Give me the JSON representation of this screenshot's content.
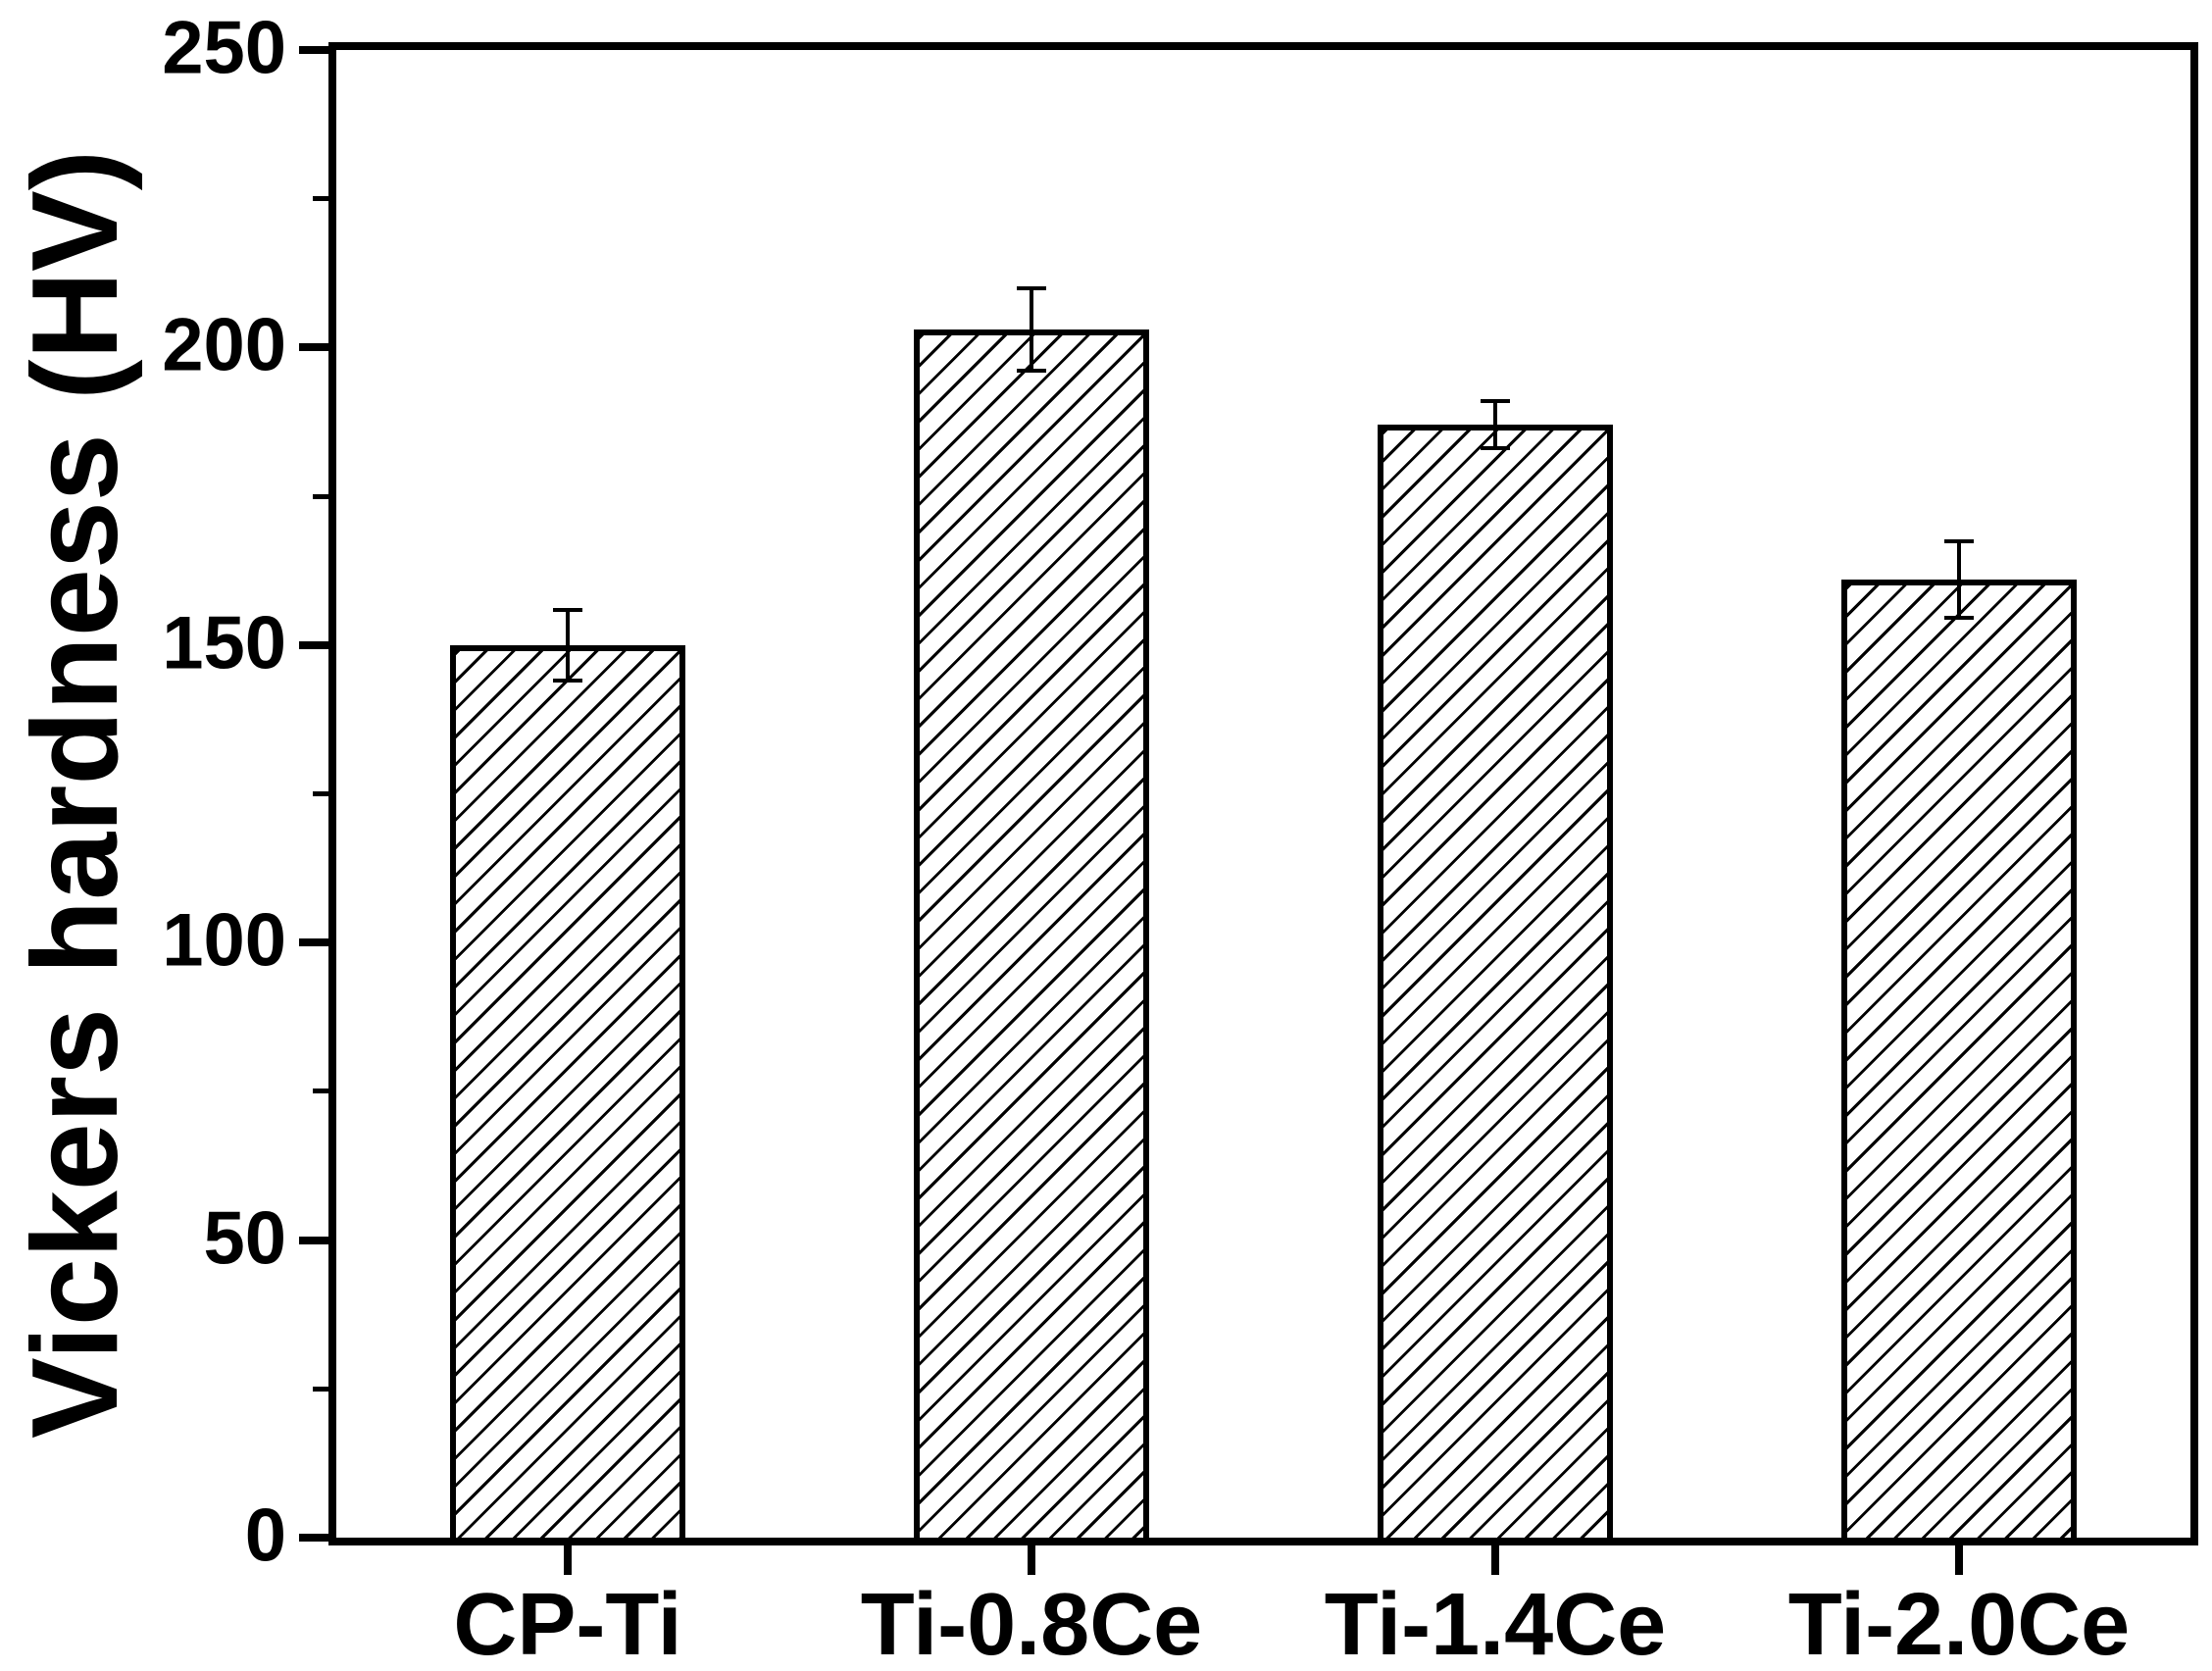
{
  "figure": {
    "background": "#ffffff",
    "foreground": "#000000"
  },
  "chart_data": {
    "type": "bar",
    "title": "",
    "categories": [
      "CP-Ti",
      "Ti-0.8Ce",
      "Ti-1.4Ce",
      "Ti-2.0Ce"
    ],
    "values": [
      150,
      203,
      187,
      161
    ],
    "errors": [
      6,
      7,
      4,
      6.5
    ],
    "xlabel": "",
    "ylabel": "Vickers hardness (HV)",
    "ylim": [
      0,
      250
    ],
    "ytick_major_step": 50,
    "ytick_minor_step": 25,
    "ytick_labels": [
      "0",
      "50",
      "100",
      "150",
      "200",
      "250"
    ],
    "grid": false,
    "legend": null,
    "frame": "full-box",
    "bar_style": {
      "fill": "#ffffff",
      "hatch": "forward-diagonal-45deg",
      "edge_color": "#000000"
    },
    "error_bar_color": "#000000"
  }
}
